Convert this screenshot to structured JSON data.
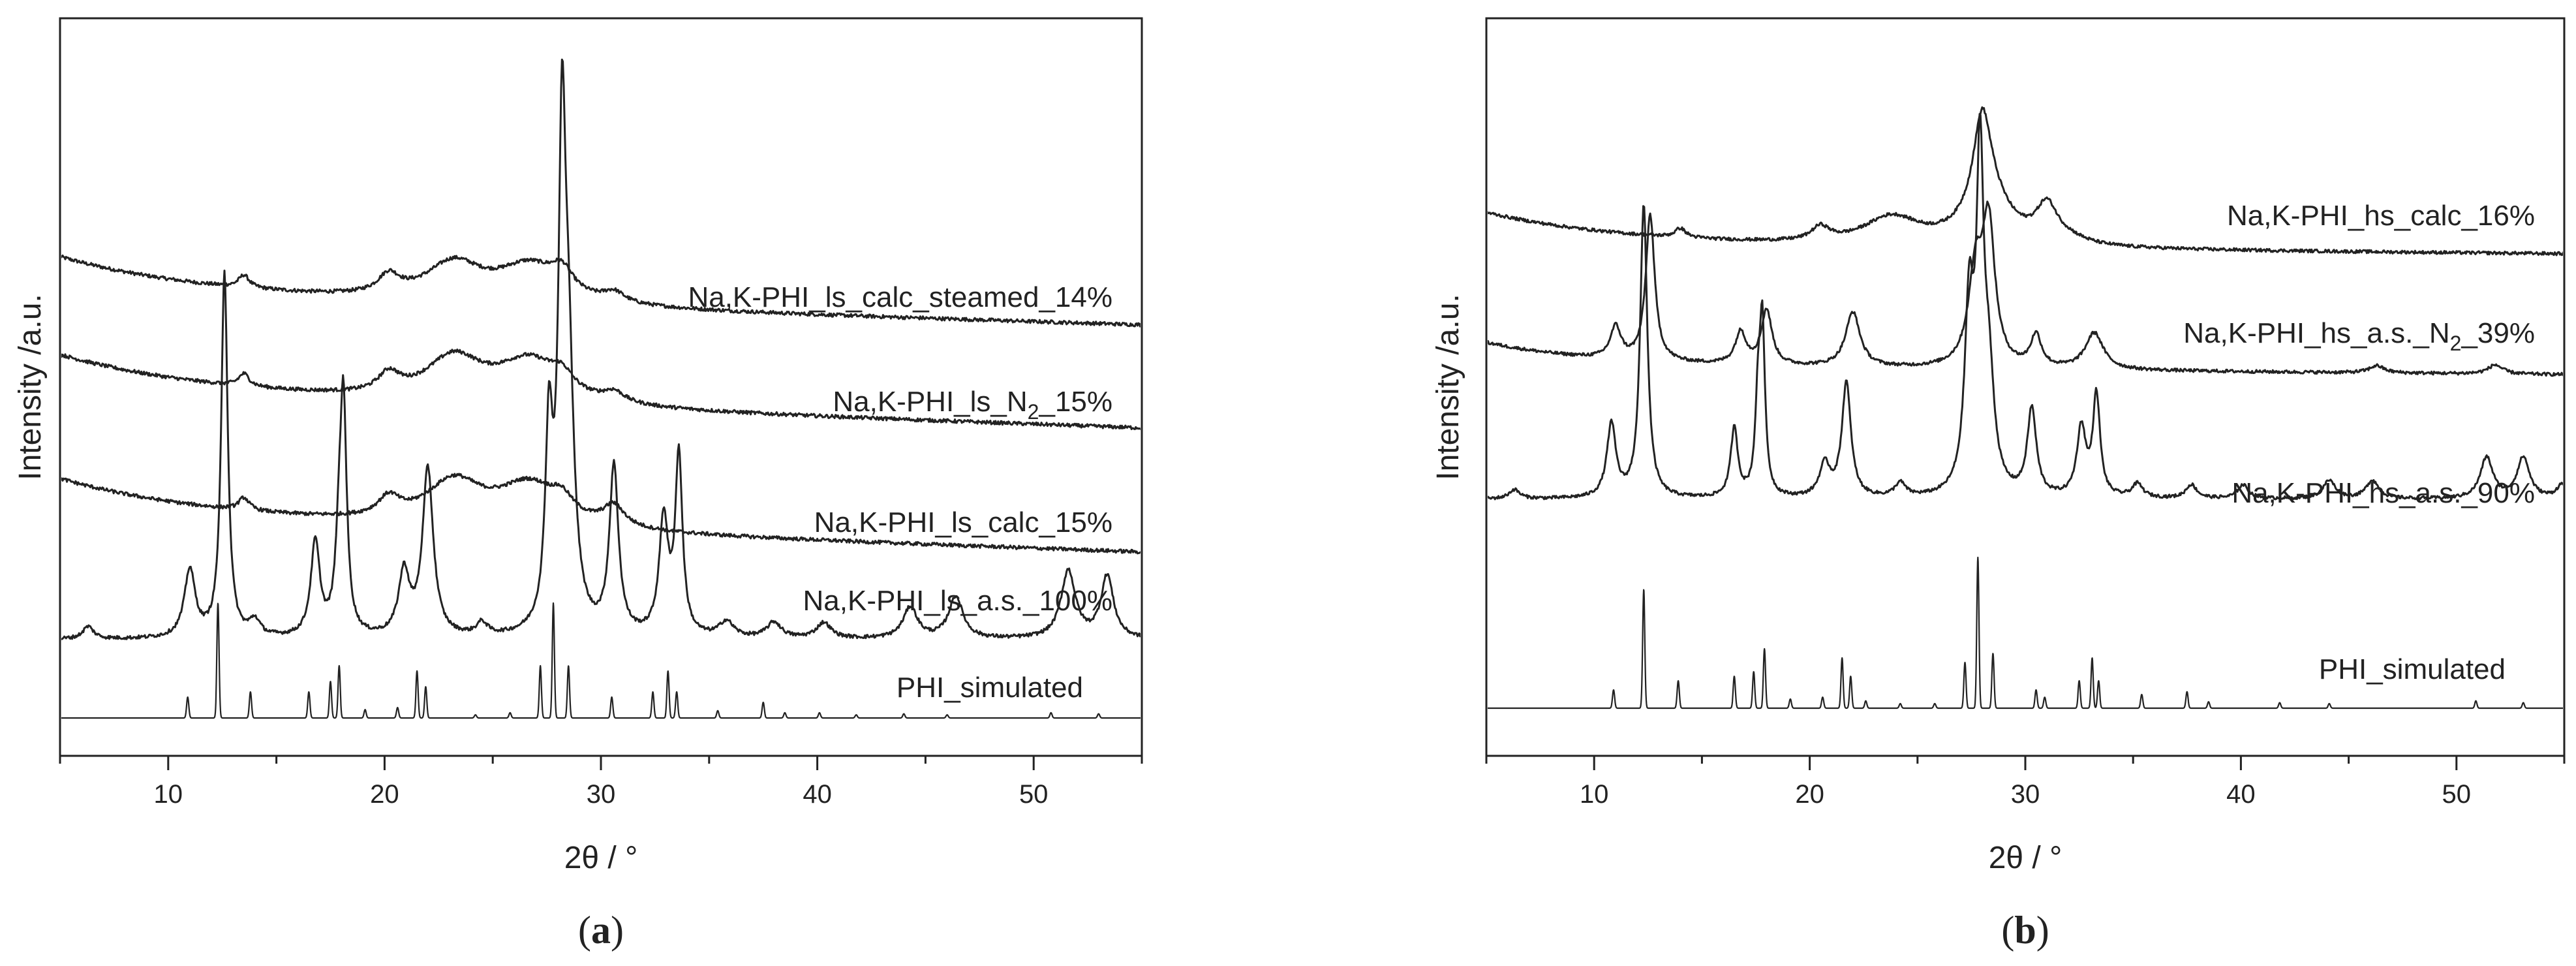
{
  "chart_data": [
    {
      "type": "line",
      "panel_label": "a",
      "xlabel": "2θ / °",
      "ylabel": "Intensity /a.u.",
      "xlim": [
        5,
        55
      ],
      "x_ticks": [
        10,
        20,
        30,
        40,
        50
      ],
      "y_ticks": "none",
      "series": [
        {
          "name": "Na,K-PHI_ls_calc_steamed_14%",
          "offset": 4.0,
          "style": "broad",
          "end_level": -0.3,
          "peaks": [
            [
              13.5,
              0.12,
              0.3
            ],
            [
              20.2,
              0.18,
              0.6
            ],
            [
              23.2,
              0.35,
              1.6
            ],
            [
              26.7,
              0.35,
              1.8
            ],
            [
              28.2,
              0.2,
              0.6
            ],
            [
              30.6,
              0.1,
              0.6
            ]
          ]
        },
        {
          "name": "Na,K-PHI_ls_N2_15%",
          "offset": 3.0,
          "style": "broad",
          "end_level": -0.35,
          "peaks": [
            [
              13.5,
              0.12,
              0.3
            ],
            [
              20.2,
              0.18,
              0.6
            ],
            [
              23.2,
              0.4,
              1.6
            ],
            [
              26.7,
              0.4,
              1.8
            ],
            [
              28.2,
              0.15,
              0.6
            ],
            [
              30.6,
              0.1,
              0.6
            ]
          ]
        },
        {
          "name": "Na,K-PHI_ls_calc_15%",
          "offset": 2.0,
          "style": "broad",
          "end_level": -0.35,
          "peaks": [
            [
              13.5,
              0.12,
              0.3
            ],
            [
              20.2,
              0.18,
              0.6
            ],
            [
              23.2,
              0.4,
              1.6
            ],
            [
              26.7,
              0.4,
              1.8
            ],
            [
              28.2,
              0.15,
              0.6
            ],
            [
              30.6,
              0.2,
              0.6
            ]
          ]
        },
        {
          "name": "Na,K-PHI_ls_a.s._100%",
          "offset": 1.0,
          "style": "sharp",
          "end_level": 0.0,
          "peaks": [
            [
              6.3,
              0.12,
              0.3
            ],
            [
              11.0,
              0.65,
              0.3
            ],
            [
              12.6,
              3.5,
              0.18
            ],
            [
              14.0,
              0.15,
              0.3
            ],
            [
              16.8,
              0.9,
              0.25
            ],
            [
              17.9,
              0.7,
              0.2
            ],
            [
              18.1,
              2.1,
              0.18
            ],
            [
              20.9,
              0.6,
              0.3
            ],
            [
              22.0,
              1.6,
              0.3
            ],
            [
              24.5,
              0.12,
              0.3
            ],
            [
              27.6,
              1.8,
              0.2
            ],
            [
              28.2,
              4.2,
              0.2
            ],
            [
              28.5,
              2.3,
              0.3
            ],
            [
              30.6,
              1.6,
              0.25
            ],
            [
              32.9,
              1.1,
              0.25
            ],
            [
              33.6,
              1.7,
              0.2
            ],
            [
              35.8,
              0.15,
              0.4
            ],
            [
              38.0,
              0.15,
              0.4
            ],
            [
              40.3,
              0.15,
              0.4
            ],
            [
              44.3,
              0.3,
              0.4
            ],
            [
              46.4,
              0.4,
              0.4
            ],
            [
              51.6,
              0.65,
              0.4
            ],
            [
              53.4,
              0.6,
              0.35
            ]
          ]
        },
        {
          "name": "PHI_simulated",
          "offset": 0.0,
          "style": "simulated",
          "end_level": 0.0,
          "peaks": [
            [
              10.9,
              0.2,
              0.05
            ],
            [
              12.3,
              1.1,
              0.05
            ],
            [
              13.8,
              0.25,
              0.05
            ],
            [
              16.5,
              0.25,
              0.05
            ],
            [
              17.5,
              0.35,
              0.05
            ],
            [
              17.9,
              0.5,
              0.05
            ],
            [
              19.1,
              0.08,
              0.05
            ],
            [
              20.6,
              0.1,
              0.05
            ],
            [
              21.5,
              0.45,
              0.05
            ],
            [
              21.9,
              0.3,
              0.05
            ],
            [
              24.2,
              0.03,
              0.05
            ],
            [
              25.8,
              0.05,
              0.05
            ],
            [
              27.2,
              0.5,
              0.05
            ],
            [
              27.8,
              1.1,
              0.05
            ],
            [
              28.5,
              0.5,
              0.05
            ],
            [
              30.5,
              0.2,
              0.05
            ],
            [
              32.4,
              0.25,
              0.05
            ],
            [
              33.1,
              0.45,
              0.05
            ],
            [
              33.5,
              0.25,
              0.05
            ],
            [
              35.4,
              0.07,
              0.05
            ],
            [
              37.5,
              0.15,
              0.05
            ],
            [
              38.5,
              0.05,
              0.05
            ],
            [
              40.1,
              0.05,
              0.05
            ],
            [
              41.8,
              0.03,
              0.05
            ],
            [
              44.0,
              0.04,
              0.05
            ],
            [
              46.0,
              0.03,
              0.05
            ],
            [
              50.8,
              0.05,
              0.05
            ],
            [
              53.0,
              0.04,
              0.05
            ]
          ]
        }
      ]
    },
    {
      "type": "line",
      "panel_label": "b",
      "xlabel": "2θ / °",
      "ylabel": "Intensity /a.u.",
      "xlim": [
        5,
        55
      ],
      "x_ticks": [
        10,
        20,
        30,
        40,
        50
      ],
      "y_ticks": "none",
      "series": [
        {
          "name": "Na,K-PHI_hs_calc_16%",
          "offset": 3.0,
          "style": "broad",
          "end_level": -0.1,
          "peaks": [
            [
              14.0,
              0.1,
              0.3
            ],
            [
              20.5,
              0.15,
              0.5
            ],
            [
              23.8,
              0.3,
              1.6
            ],
            [
              28.0,
              1.0,
              0.5
            ],
            [
              28.3,
              0.5,
              1.2
            ],
            [
              31.0,
              0.4,
              0.6
            ],
            [
              32.0,
              0.06,
              1.0
            ]
          ]
        },
        {
          "name": "Na,K-PHI_hs_a.s._N2_39%",
          "offset": 2.0,
          "style": "medium",
          "end_level": -0.1,
          "peaks": [
            [
              11.0,
              0.35,
              0.3
            ],
            [
              12.6,
              1.6,
              0.25
            ],
            [
              16.8,
              0.35,
              0.3
            ],
            [
              18.0,
              0.6,
              0.3
            ],
            [
              22.0,
              0.6,
              0.4
            ],
            [
              27.7,
              1.0,
              0.4
            ],
            [
              28.3,
              1.5,
              0.35
            ],
            [
              30.5,
              0.35,
              0.3
            ],
            [
              33.2,
              0.4,
              0.5
            ],
            [
              46.3,
              0.08,
              0.4
            ],
            [
              51.8,
              0.1,
              0.4
            ]
          ]
        },
        {
          "name": "Na,K-PHI_hs_a.s._90%",
          "offset": 1.0,
          "style": "sharp",
          "end_level": 0.0,
          "peaks": [
            [
              6.3,
              0.1,
              0.3
            ],
            [
              10.8,
              0.8,
              0.25
            ],
            [
              12.3,
              3.2,
              0.2
            ],
            [
              16.5,
              0.75,
              0.2
            ],
            [
              17.6,
              0.9,
              0.15
            ],
            [
              17.8,
              1.8,
              0.15
            ],
            [
              20.7,
              0.35,
              0.3
            ],
            [
              21.7,
              1.25,
              0.25
            ],
            [
              24.2,
              0.15,
              0.3
            ],
            [
              27.4,
              2.0,
              0.25
            ],
            [
              27.9,
              3.4,
              0.2
            ],
            [
              28.3,
              1.2,
              0.3
            ],
            [
              30.3,
              0.95,
              0.25
            ],
            [
              32.6,
              0.75,
              0.25
            ],
            [
              33.3,
              1.1,
              0.2
            ],
            [
              35.2,
              0.15,
              0.3
            ],
            [
              37.7,
              0.15,
              0.3
            ],
            [
              40.1,
              0.15,
              0.3
            ],
            [
              44.1,
              0.2,
              0.35
            ],
            [
              46.1,
              0.2,
              0.35
            ],
            [
              51.4,
              0.45,
              0.35
            ],
            [
              53.1,
              0.45,
              0.35
            ],
            [
              54.9,
              0.15,
              0.3
            ]
          ]
        },
        {
          "name": "PHI_simulated",
          "offset": 0.0,
          "style": "simulated",
          "end_level": 0.0,
          "peaks": [
            [
              10.9,
              0.2,
              0.05
            ],
            [
              12.3,
              1.3,
              0.05
            ],
            [
              13.9,
              0.3,
              0.05
            ],
            [
              16.5,
              0.35,
              0.05
            ],
            [
              17.4,
              0.4,
              0.05
            ],
            [
              17.9,
              0.65,
              0.05
            ],
            [
              19.1,
              0.1,
              0.05
            ],
            [
              20.6,
              0.12,
              0.05
            ],
            [
              21.5,
              0.55,
              0.05
            ],
            [
              21.9,
              0.35,
              0.05
            ],
            [
              22.6,
              0.08,
              0.05
            ],
            [
              24.2,
              0.05,
              0.05
            ],
            [
              25.8,
              0.05,
              0.05
            ],
            [
              27.2,
              0.5,
              0.05
            ],
            [
              27.8,
              1.65,
              0.05
            ],
            [
              28.5,
              0.6,
              0.05
            ],
            [
              30.5,
              0.2,
              0.05
            ],
            [
              30.9,
              0.12,
              0.05
            ],
            [
              32.5,
              0.3,
              0.05
            ],
            [
              33.1,
              0.55,
              0.05
            ],
            [
              33.4,
              0.3,
              0.05
            ],
            [
              35.4,
              0.15,
              0.05
            ],
            [
              37.5,
              0.18,
              0.05
            ],
            [
              38.5,
              0.07,
              0.05
            ],
            [
              41.8,
              0.06,
              0.05
            ],
            [
              44.1,
              0.05,
              0.05
            ],
            [
              50.9,
              0.08,
              0.05
            ],
            [
              53.1,
              0.06,
              0.05
            ]
          ]
        }
      ]
    }
  ]
}
